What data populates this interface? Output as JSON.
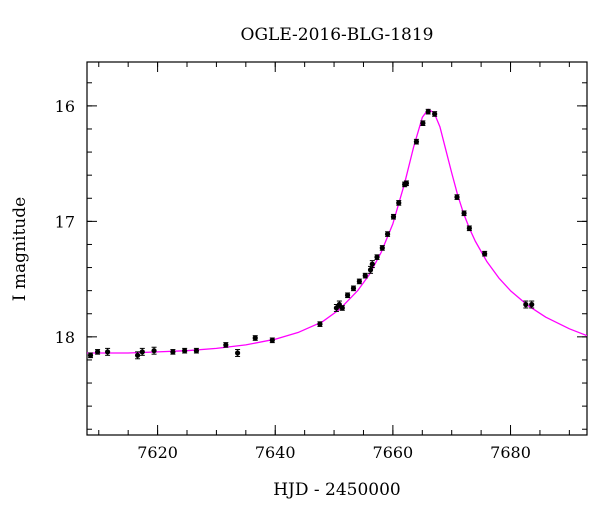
{
  "chart_data": {
    "type": "scatter",
    "title": "OGLE-2016-BLG-1819",
    "xlabel": "HJD - 2450000",
    "ylabel": "I magnitude",
    "xlim": [
      7608,
      7693
    ],
    "ylim": [
      18.85,
      15.62
    ],
    "y_inverted": true,
    "grid": false,
    "x_ticks": [
      7620,
      7640,
      7660,
      7680
    ],
    "y_ticks": [
      16,
      17,
      18
    ],
    "x_minor_step": 5,
    "y_minor_step": 0.2,
    "colors": {
      "model": "#ff00ff",
      "points": "#000000",
      "axes": "#000000"
    },
    "series": [
      {
        "kind": "points",
        "x": [
          7608.6,
          7609.8,
          7611.5,
          7616.6,
          7617.4,
          7619.4,
          7622.6,
          7624.6,
          7626.6,
          7631.6,
          7633.6,
          7636.6,
          7639.5,
          7647.6,
          7650.4,
          7650.9,
          7651.4,
          7652.3,
          7653.3,
          7654.3,
          7655.3,
          7656.2,
          7656.5,
          7657.3,
          7658.2,
          7659.1,
          7660.1,
          7661.0,
          7662.0,
          7662.3,
          7664.0,
          7665.1,
          7666.0,
          7667.1,
          7670.9,
          7672.1,
          7673.0,
          7675.6,
          7682.6,
          7683.6
        ],
        "y": [
          18.16,
          18.13,
          18.13,
          18.16,
          18.13,
          18.12,
          18.13,
          18.12,
          18.12,
          18.07,
          18.14,
          18.01,
          18.03,
          17.89,
          17.75,
          17.72,
          17.75,
          17.64,
          17.58,
          17.52,
          17.47,
          17.42,
          17.37,
          17.31,
          17.23,
          17.11,
          16.96,
          16.84,
          16.68,
          16.67,
          16.31,
          16.15,
          16.05,
          16.07,
          16.79,
          16.93,
          17.06,
          17.28,
          17.72,
          17.72
        ],
        "err": [
          0.02,
          0.02,
          0.03,
          0.03,
          0.03,
          0.03,
          0.02,
          0.02,
          0.02,
          0.02,
          0.03,
          0.02,
          0.02,
          0.02,
          0.03,
          0.03,
          0.02,
          0.02,
          0.02,
          0.02,
          0.02,
          0.03,
          0.03,
          0.02,
          0.02,
          0.02,
          0.02,
          0.02,
          0.02,
          0.02,
          0.02,
          0.02,
          0.02,
          0.02,
          0.02,
          0.02,
          0.02,
          0.02,
          0.03,
          0.03
        ]
      },
      {
        "kind": "model",
        "x": [
          7608,
          7615,
          7620,
          7625,
          7630,
          7635,
          7640,
          7644,
          7648,
          7651,
          7654,
          7656,
          7658,
          7660,
          7662,
          7663.5,
          7665,
          7666,
          7667,
          7668,
          7669,
          7670,
          7671,
          7672,
          7673,
          7674,
          7676,
          7678,
          7680,
          7683,
          7686,
          7690,
          7693
        ],
        "y": [
          18.14,
          18.14,
          18.13,
          18.12,
          18.1,
          18.07,
          18.02,
          17.96,
          17.87,
          17.76,
          17.6,
          17.46,
          17.27,
          17.02,
          16.67,
          16.36,
          16.1,
          16.03,
          16.06,
          16.18,
          16.38,
          16.58,
          16.77,
          16.93,
          17.06,
          17.17,
          17.35,
          17.49,
          17.6,
          17.73,
          17.83,
          17.93,
          17.99
        ]
      }
    ]
  }
}
